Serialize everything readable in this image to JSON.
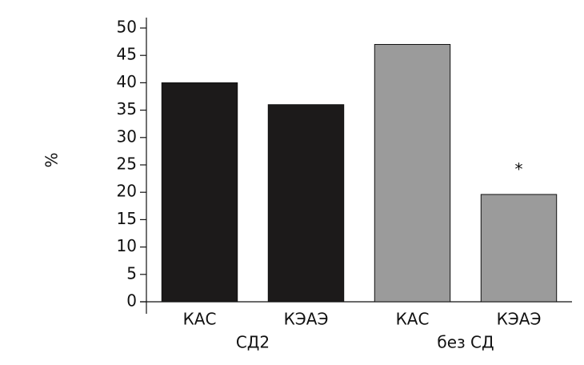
{
  "chart_data": {
    "type": "bar",
    "y_label": "%",
    "categories": [
      "КАС",
      "КЭАЭ",
      "КАС",
      "КЭАЭ"
    ],
    "groups": [
      "СД2",
      "без СД"
    ],
    "values": [
      40,
      36,
      47,
      19.6
    ],
    "colors": [
      "#1c1a1a",
      "#1c1a1a",
      "#9b9b9b",
      "#9b9b9b"
    ],
    "annotations": [
      "*"
    ],
    "ylim": [
      0,
      50
    ],
    "yticks": [
      0,
      5,
      10,
      15,
      20,
      25,
      30,
      35,
      40,
      45,
      50
    ],
    "grid": false
  }
}
